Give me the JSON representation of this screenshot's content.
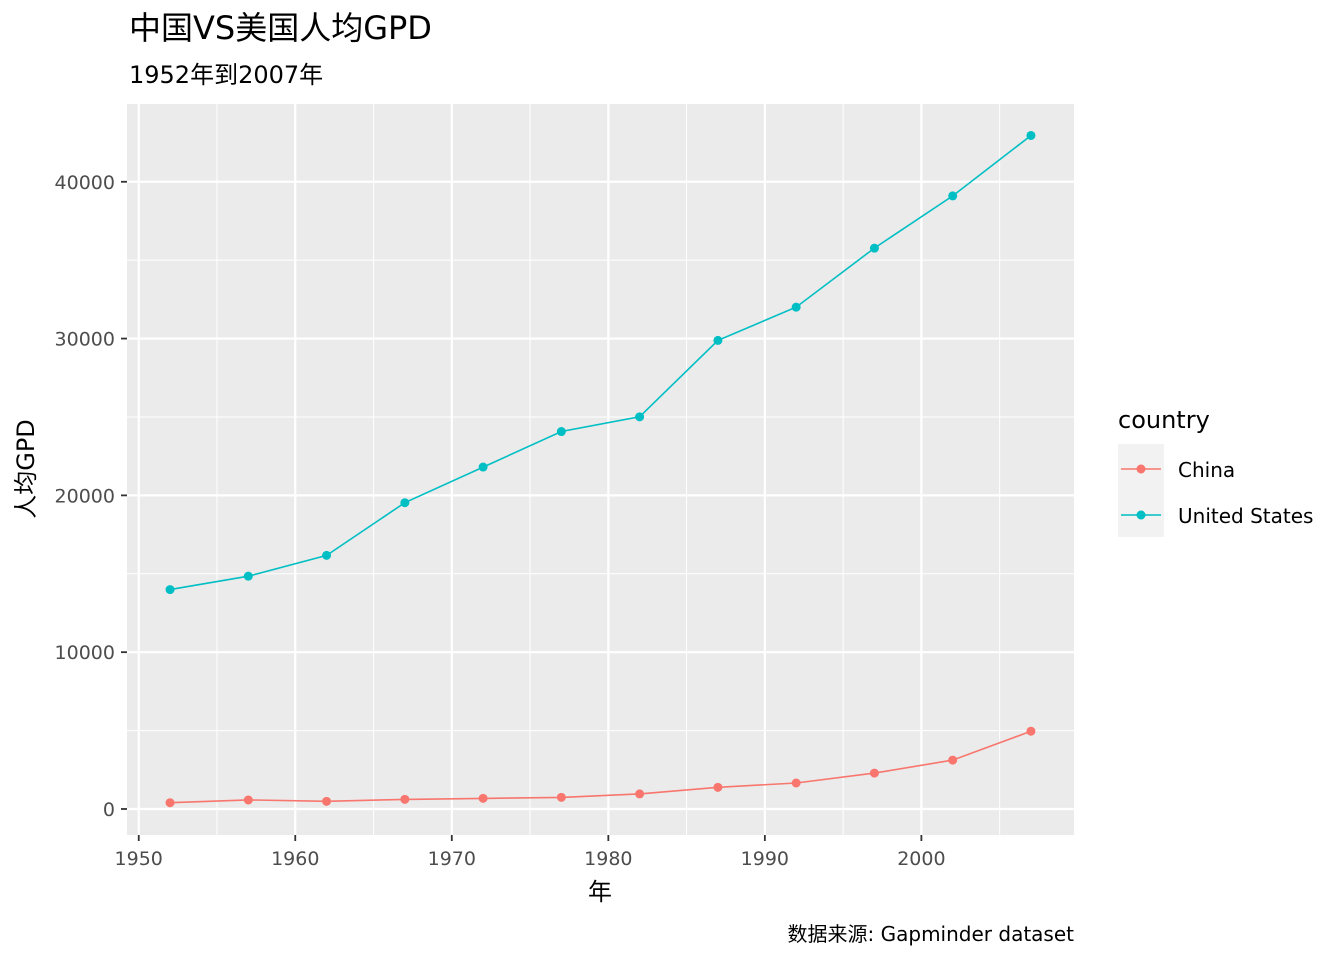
{
  "chart_data": {
    "type": "line",
    "title": "中国VS美国人均GPD",
    "subtitle": "1952年到2007年",
    "xlabel": "年",
    "ylabel": "人均GPD",
    "caption": "数据来源: Gapminder dataset",
    "x": [
      1952,
      1957,
      1962,
      1967,
      1972,
      1977,
      1982,
      1987,
      1992,
      1997,
      2002,
      2007
    ],
    "xlim": [
      1949.25,
      2009.75
    ],
    "ylim": [
      -1660,
      44960
    ],
    "x_ticks": [
      1950,
      1960,
      1970,
      1980,
      1990,
      2000
    ],
    "y_ticks": [
      0,
      10000,
      20000,
      30000,
      40000
    ],
    "grid": true,
    "legend": {
      "title": "country",
      "position": "right"
    },
    "series": [
      {
        "name": "China",
        "color": "#F8766D",
        "values": [
          400,
          576,
          488,
          613,
          677,
          741,
          962,
          1379,
          1656,
          2289,
          3119,
          4959
        ]
      },
      {
        "name": "United States",
        "color": "#00BFC4",
        "values": [
          13990,
          14847,
          16173,
          19530,
          21806,
          24073,
          25010,
          29884,
          32004,
          35767,
          39097,
          42952
        ]
      }
    ]
  }
}
